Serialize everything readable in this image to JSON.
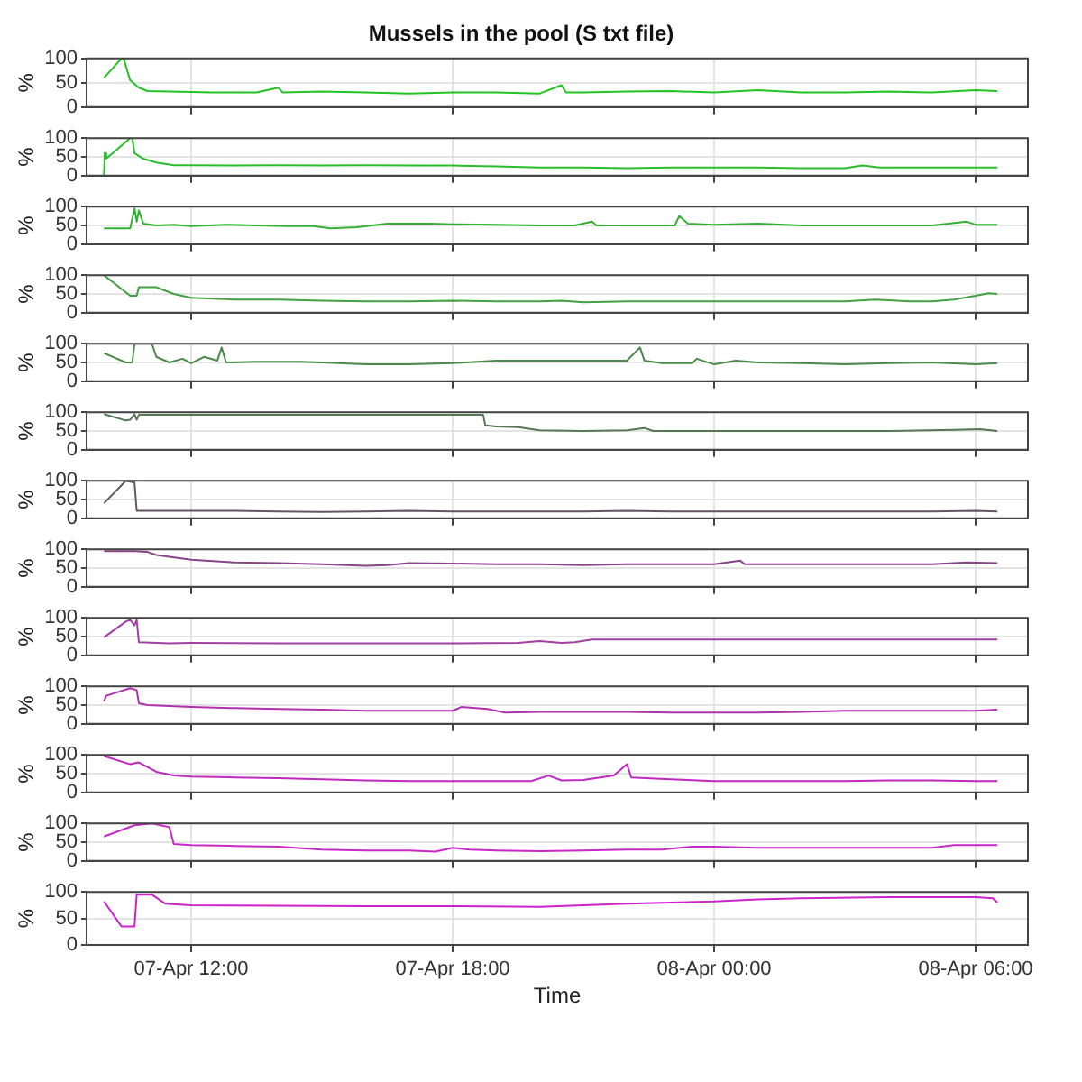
{
  "chart_data": [
    {
      "type": "line",
      "title": "Mussels in the pool (S txt file)",
      "ylabel": "%",
      "color": "#22c322",
      "xlim": [
        "--04-07T09:36",
        "--04-08T07:12"
      ],
      "xticks": [
        {
          "value": "--04-07T12:00",
          "label": null
        },
        {
          "value": "--04-07T18:00",
          "label": null
        },
        {
          "value": "--04-08T00:00",
          "label": null
        },
        {
          "value": "--04-08T06:00",
          "label": null
        }
      ],
      "ylim": [
        0,
        100
      ],
      "yticks": [
        0,
        50,
        100
      ],
      "grid": true,
      "tick_labels": "y",
      "x": [
        "--04-07T10:00",
        "--04-07T10:24",
        "--04-07T10:27",
        "--04-07T10:36",
        "--04-07T10:48",
        "--04-07T11:00",
        "--04-07T11:30",
        "--04-07T12:30",
        "--04-07T13:30",
        "--04-07T14:00",
        "--04-07T14:06",
        "--04-07T15:00",
        "--04-07T16:00",
        "--04-07T17:00",
        "--04-07T18:00",
        "--04-07T19:00",
        "--04-07T20:00",
        "--04-07T20:30",
        "--04-07T20:36",
        "--04-07T21:00",
        "--04-07T22:00",
        "--04-07T23:00",
        "--04-08T00:00",
        "--04-08T01:00",
        "--04-08T02:00",
        "--04-08T03:00",
        "--04-08T04:00",
        "--04-08T05:00",
        "--04-08T06:00",
        "--04-08T06:30"
      ],
      "values": [
        60,
        100,
        100,
        55,
        40,
        33,
        32,
        30,
        30,
        40,
        30,
        32,
        30,
        28,
        30,
        30,
        28,
        45,
        30,
        30,
        32,
        33,
        30,
        35,
        30,
        30,
        32,
        30,
        35,
        33
      ]
    },
    {
      "type": "line",
      "ylabel": "%",
      "color": "#2bbd2b",
      "xlim": [
        "--04-07T09:36",
        "--04-08T07:12"
      ],
      "xticks": [
        {
          "value": "--04-07T12:00",
          "label": null
        },
        {
          "value": "--04-07T18:00",
          "label": null
        },
        {
          "value": "--04-08T00:00",
          "label": null
        },
        {
          "value": "--04-08T06:00",
          "label": null
        }
      ],
      "ylim": [
        0,
        100
      ],
      "yticks": [
        0,
        50,
        100
      ],
      "grid": true,
      "tick_labels": "y",
      "x": [
        "--04-07T10:00",
        "--04-07T10:01",
        "--04-07T10:03",
        "--04-07T10:36",
        "--04-07T10:39",
        "--04-07T10:42",
        "--04-07T10:54",
        "--04-07T11:12",
        "--04-07T11:36",
        "--04-07T12:00",
        "--04-07T13:00",
        "--04-07T14:00",
        "--04-07T15:00",
        "--04-07T16:00",
        "--04-07T17:00",
        "--04-07T18:00",
        "--04-07T19:00",
        "--04-07T20:00",
        "--04-07T21:00",
        "--04-07T22:00",
        "--04-07T23:00",
        "--04-08T00:00",
        "--04-08T01:00",
        "--04-08T02:00",
        "--04-08T03:00",
        "--04-08T03:24",
        "--04-08T03:48",
        "--04-08T04:30",
        "--04-08T05:30",
        "--04-08T06:30"
      ],
      "values": [
        0,
        60,
        45,
        100,
        100,
        60,
        45,
        35,
        28,
        28,
        27,
        28,
        27,
        28,
        27,
        27,
        25,
        22,
        22,
        20,
        22,
        22,
        22,
        20,
        20,
        27,
        22,
        22,
        22,
        22
      ]
    },
    {
      "type": "line",
      "ylabel": "%",
      "color": "#33b033",
      "xlim": [
        "--04-07T09:36",
        "--04-08T07:12"
      ],
      "xticks": [
        {
          "value": "--04-07T12:00",
          "label": null
        },
        {
          "value": "--04-07T18:00",
          "label": null
        },
        {
          "value": "--04-08T00:00",
          "label": null
        },
        {
          "value": "--04-08T06:00",
          "label": null
        }
      ],
      "ylim": [
        0,
        100
      ],
      "yticks": [
        0,
        50,
        100
      ],
      "grid": true,
      "tick_labels": "y",
      "x": [
        "--04-07T10:00",
        "--04-07T10:36",
        "--04-07T10:42",
        "--04-07T10:45",
        "--04-07T10:48",
        "--04-07T10:54",
        "--04-07T11:12",
        "--04-07T11:36",
        "--04-07T12:00",
        "--04-07T12:48",
        "--04-07T13:30",
        "--04-07T14:12",
        "--04-07T14:48",
        "--04-07T15:12",
        "--04-07T15:48",
        "--04-07T16:30",
        "--04-07T17:30",
        "--04-07T18:00",
        "--04-07T19:00",
        "--04-07T20:00",
        "--04-07T20:48",
        "--04-07T21:12",
        "--04-07T21:18",
        "--04-07T22:00",
        "--04-07T23:06",
        "--04-07T23:12",
        "--04-07T23:24",
        "--04-08T00:00",
        "--04-08T01:00",
        "--04-08T02:00",
        "--04-08T03:00",
        "--04-08T04:00",
        "--04-08T05:00",
        "--04-08T05:48",
        "--04-08T06:00",
        "--04-08T06:30"
      ],
      "values": [
        42,
        42,
        95,
        60,
        90,
        55,
        50,
        52,
        48,
        52,
        50,
        48,
        48,
        42,
        45,
        55,
        55,
        53,
        52,
        50,
        50,
        60,
        50,
        50,
        50,
        75,
        55,
        52,
        55,
        50,
        50,
        50,
        50,
        60,
        52,
        52
      ]
    },
    {
      "type": "line",
      "ylabel": "%",
      "color": "#44a044",
      "xlim": [
        "--04-07T09:36",
        "--04-08T07:12"
      ],
      "xticks": [
        {
          "value": "--04-07T12:00",
          "label": null
        },
        {
          "value": "--04-07T18:00",
          "label": null
        },
        {
          "value": "--04-08T00:00",
          "label": null
        },
        {
          "value": "--04-08T06:00",
          "label": null
        }
      ],
      "ylim": [
        0,
        100
      ],
      "yticks": [
        0,
        50,
        100
      ],
      "grid": true,
      "tick_labels": "y",
      "x": [
        "--04-07T10:00",
        "--04-07T10:36",
        "--04-07T10:45",
        "--04-07T10:48",
        "--04-07T11:12",
        "--04-07T11:36",
        "--04-07T12:00",
        "--04-07T13:00",
        "--04-07T14:00",
        "--04-07T15:00",
        "--04-07T16:00",
        "--04-07T17:00",
        "--04-07T18:00",
        "--04-07T19:00",
        "--04-07T20:00",
        "--04-07T20:30",
        "--04-07T21:00",
        "--04-07T22:00",
        "--04-07T23:00",
        "--04-08T00:00",
        "--04-08T01:00",
        "--04-08T02:00",
        "--04-08T03:00",
        "--04-08T03:42",
        "--04-08T04:30",
        "--04-08T05:00",
        "--04-08T05:30",
        "--04-08T06:00",
        "--04-08T06:18",
        "--04-08T06:30"
      ],
      "values": [
        100,
        45,
        45,
        68,
        68,
        50,
        40,
        35,
        35,
        32,
        30,
        30,
        32,
        30,
        30,
        32,
        28,
        30,
        30,
        30,
        30,
        30,
        30,
        35,
        30,
        30,
        35,
        45,
        52,
        50
      ]
    },
    {
      "type": "line",
      "ylabel": "%",
      "color": "#4a8a4a",
      "xlim": [
        "--04-07T09:36",
        "--04-08T07:12"
      ],
      "xticks": [
        {
          "value": "--04-07T12:00",
          "label": null
        },
        {
          "value": "--04-07T18:00",
          "label": null
        },
        {
          "value": "--04-08T00:00",
          "label": null
        },
        {
          "value": "--04-08T06:00",
          "label": null
        }
      ],
      "ylim": [
        0,
        100
      ],
      "yticks": [
        0,
        50,
        100
      ],
      "grid": true,
      "tick_labels": "y",
      "x": [
        "--04-07T10:00",
        "--04-07T10:30",
        "--04-07T10:39",
        "--04-07T10:42",
        "--04-07T11:06",
        "--04-07T11:12",
        "--04-07T11:30",
        "--04-07T11:48",
        "--04-07T12:00",
        "--04-07T12:18",
        "--04-07T12:36",
        "--04-07T12:42",
        "--04-07T12:48",
        "--04-07T13:30",
        "--04-07T14:30",
        "--04-07T15:00",
        "--04-07T16:00",
        "--04-07T17:00",
        "--04-07T18:00",
        "--04-07T19:00",
        "--04-07T20:00",
        "--04-07T21:00",
        "--04-07T22:00",
        "--04-07T22:18",
        "--04-07T22:24",
        "--04-07T22:48",
        "--04-07T23:30",
        "--04-07T23:36",
        "--04-08T00:00",
        "--04-08T00:30",
        "--04-08T01:00",
        "--04-08T02:00",
        "--04-08T03:00",
        "--04-08T04:00",
        "--04-08T05:00",
        "--04-08T06:00",
        "--04-08T06:30"
      ],
      "values": [
        75,
        50,
        50,
        100,
        100,
        65,
        50,
        60,
        48,
        65,
        55,
        90,
        50,
        52,
        52,
        50,
        45,
        45,
        48,
        55,
        55,
        55,
        55,
        90,
        55,
        48,
        48,
        60,
        45,
        55,
        50,
        48,
        45,
        48,
        50,
        45,
        48
      ]
    },
    {
      "type": "line",
      "ylabel": "%",
      "color": "#557755",
      "xlim": [
        "--04-07T09:36",
        "--04-08T07:12"
      ],
      "xticks": [
        {
          "value": "--04-07T12:00",
          "label": null
        },
        {
          "value": "--04-07T18:00",
          "label": null
        },
        {
          "value": "--04-08T00:00",
          "label": null
        },
        {
          "value": "--04-08T06:00",
          "label": null
        }
      ],
      "ylim": [
        0,
        100
      ],
      "yticks": [
        0,
        50,
        100
      ],
      "grid": true,
      "tick_labels": "y",
      "x": [
        "--04-07T10:00",
        "--04-07T10:30",
        "--04-07T10:36",
        "--04-07T10:42",
        "--04-07T10:45",
        "--04-07T10:48",
        "--04-07T12:00",
        "--04-07T15:00",
        "--04-07T18:42",
        "--04-07T18:45",
        "--04-07T19:00",
        "--04-07T19:30",
        "--04-07T20:00",
        "--04-07T21:00",
        "--04-07T22:00",
        "--04-07T22:24",
        "--04-07T22:36",
        "--04-07T23:00",
        "--04-08T00:00",
        "--04-08T01:00",
        "--04-08T02:00",
        "--04-08T03:00",
        "--04-08T04:00",
        "--04-08T05:30",
        "--04-08T06:06",
        "--04-08T06:30"
      ],
      "values": [
        95,
        78,
        80,
        95,
        80,
        93,
        93,
        93,
        93,
        65,
        62,
        60,
        52,
        50,
        52,
        58,
        50,
        50,
        50,
        50,
        50,
        50,
        50,
        53,
        55,
        50
      ]
    },
    {
      "type": "line",
      "ylabel": "%",
      "color": "#665566",
      "xlim": [
        "--04-07T09:36",
        "--04-08T07:12"
      ],
      "xticks": [
        {
          "value": "--04-07T12:00",
          "label": null
        },
        {
          "value": "--04-07T18:00",
          "label": null
        },
        {
          "value": "--04-08T00:00",
          "label": null
        },
        {
          "value": "--04-08T06:00",
          "label": null
        }
      ],
      "ylim": [
        0,
        100
      ],
      "yticks": [
        0,
        50,
        100
      ],
      "grid": true,
      "tick_labels": "y",
      "x": [
        "--04-07T10:00",
        "--04-07T10:30",
        "--04-07T10:42",
        "--04-07T10:45",
        "--04-07T11:00",
        "--04-07T12:00",
        "--04-07T13:00",
        "--04-07T14:00",
        "--04-07T15:00",
        "--04-07T16:00",
        "--04-07T17:00",
        "--04-07T18:00",
        "--04-07T19:00",
        "--04-07T20:00",
        "--04-07T21:00",
        "--04-07T22:00",
        "--04-07T23:00",
        "--04-08T00:00",
        "--04-08T01:00",
        "--04-08T02:00",
        "--04-08T03:00",
        "--04-08T04:00",
        "--04-08T05:00",
        "--04-08T06:00",
        "--04-08T06:30"
      ],
      "values": [
        40,
        100,
        95,
        20,
        20,
        20,
        20,
        18,
        17,
        18,
        20,
        18,
        18,
        18,
        18,
        20,
        18,
        18,
        18,
        18,
        18,
        18,
        18,
        20,
        18
      ]
    },
    {
      "type": "line",
      "ylabel": "%",
      "color": "#884488",
      "xlim": [
        "--04-07T09:36",
        "--04-08T07:12"
      ],
      "xticks": [
        {
          "value": "--04-07T12:00",
          "label": null
        },
        {
          "value": "--04-07T18:00",
          "label": null
        },
        {
          "value": "--04-08T00:00",
          "label": null
        },
        {
          "value": "--04-08T06:00",
          "label": null
        }
      ],
      "ylim": [
        0,
        100
      ],
      "yticks": [
        0,
        50,
        100
      ],
      "grid": true,
      "tick_labels": "y",
      "x": [
        "--04-07T10:00",
        "--04-07T10:42",
        "--04-07T11:00",
        "--04-07T11:12",
        "--04-07T11:30",
        "--04-07T12:00",
        "--04-07T13:00",
        "--04-07T14:00",
        "--04-07T15:00",
        "--04-07T16:00",
        "--04-07T16:30",
        "--04-07T17:00",
        "--04-07T18:00",
        "--04-07T19:00",
        "--04-07T20:00",
        "--04-07T21:00",
        "--04-07T22:00",
        "--04-07T23:00",
        "--04-08T00:00",
        "--04-08T00:36",
        "--04-08T00:42",
        "--04-08T02:00",
        "--04-08T03:00",
        "--04-08T04:00",
        "--04-08T05:00",
        "--04-08T05:48",
        "--04-08T06:30"
      ],
      "values": [
        95,
        95,
        93,
        85,
        80,
        72,
        65,
        63,
        60,
        56,
        58,
        63,
        62,
        60,
        60,
        58,
        60,
        60,
        60,
        70,
        60,
        60,
        60,
        60,
        60,
        65,
        63
      ]
    },
    {
      "type": "line",
      "ylabel": "%",
      "color": "#a040a0",
      "xlim": [
        "--04-07T09:36",
        "--04-08T07:12"
      ],
      "xticks": [
        {
          "value": "--04-07T12:00",
          "label": null
        },
        {
          "value": "--04-07T18:00",
          "label": null
        },
        {
          "value": "--04-08T00:00",
          "label": null
        },
        {
          "value": "--04-08T06:00",
          "label": null
        }
      ],
      "ylim": [
        0,
        100
      ],
      "yticks": [
        0,
        50,
        100
      ],
      "grid": true,
      "tick_labels": "y",
      "x": [
        "--04-07T10:00",
        "--04-07T10:30",
        "--04-07T10:36",
        "--04-07T10:42",
        "--04-07T10:45",
        "--04-07T10:48",
        "--04-07T11:30",
        "--04-07T12:00",
        "--04-07T14:00",
        "--04-07T16:00",
        "--04-07T18:00",
        "--04-07T19:30",
        "--04-07T20:00",
        "--04-07T20:30",
        "--04-07T20:48",
        "--04-07T21:12",
        "--04-07T22:00",
        "--04-08T00:00",
        "--04-08T02:00",
        "--04-08T04:00",
        "--04-08T06:00",
        "--04-08T06:30"
      ],
      "values": [
        48,
        90,
        95,
        80,
        95,
        35,
        32,
        33,
        32,
        32,
        32,
        33,
        38,
        33,
        35,
        42,
        42,
        42,
        42,
        42,
        42,
        42
      ]
    },
    {
      "type": "line",
      "ylabel": "%",
      "color": "#b030b0",
      "xlim": [
        "--04-07T09:36",
        "--04-08T07:12"
      ],
      "xticks": [
        {
          "value": "--04-07T12:00",
          "label": null
        },
        {
          "value": "--04-07T18:00",
          "label": null
        },
        {
          "value": "--04-08T00:00",
          "label": null
        },
        {
          "value": "--04-08T06:00",
          "label": null
        }
      ],
      "ylim": [
        0,
        100
      ],
      "yticks": [
        0,
        50,
        100
      ],
      "grid": true,
      "tick_labels": "y",
      "x": [
        "--04-07T10:00",
        "--04-07T10:03",
        "--04-07T10:36",
        "--04-07T10:45",
        "--04-07T10:48",
        "--04-07T11:00",
        "--04-07T12:00",
        "--04-07T13:00",
        "--04-07T14:00",
        "--04-07T15:00",
        "--04-07T16:00",
        "--04-07T17:00",
        "--04-07T18:00",
        "--04-07T18:12",
        "--04-07T18:48",
        "--04-07T19:12",
        "--04-07T20:00",
        "--04-07T21:00",
        "--04-07T22:00",
        "--04-07T23:00",
        "--04-08T00:00",
        "--04-08T01:00",
        "--04-08T02:00",
        "--04-08T03:00",
        "--04-08T04:00",
        "--04-08T05:00",
        "--04-08T06:00",
        "--04-08T06:30"
      ],
      "values": [
        60,
        75,
        95,
        90,
        55,
        50,
        45,
        42,
        40,
        38,
        35,
        35,
        35,
        45,
        40,
        30,
        32,
        32,
        32,
        30,
        30,
        30,
        32,
        35,
        35,
        35,
        35,
        38
      ]
    },
    {
      "type": "line",
      "ylabel": "%",
      "color": "#c028c0",
      "xlim": [
        "--04-07T09:36",
        "--04-08T07:12"
      ],
      "xticks": [
        {
          "value": "--04-07T12:00",
          "label": null
        },
        {
          "value": "--04-07T18:00",
          "label": null
        },
        {
          "value": "--04-08T00:00",
          "label": null
        },
        {
          "value": "--04-08T06:00",
          "label": null
        }
      ],
      "ylim": [
        0,
        100
      ],
      "yticks": [
        0,
        50,
        100
      ],
      "grid": true,
      "tick_labels": "y",
      "x": [
        "--04-07T10:00",
        "--04-07T10:36",
        "--04-07T10:48",
        "--04-07T11:12",
        "--04-07T11:36",
        "--04-07T12:00",
        "--04-07T13:00",
        "--04-07T14:00",
        "--04-07T15:00",
        "--04-07T16:00",
        "--04-07T17:00",
        "--04-07T18:00",
        "--04-07T19:00",
        "--04-07T19:48",
        "--04-07T20:12",
        "--04-07T20:30",
        "--04-07T21:00",
        "--04-07T21:42",
        "--04-07T22:00",
        "--04-07T22:06",
        "--04-07T23:00",
        "--04-08T00:00",
        "--04-08T01:00",
        "--04-08T02:00",
        "--04-08T03:00",
        "--04-08T04:00",
        "--04-08T05:00",
        "--04-08T06:00",
        "--04-08T06:30"
      ],
      "values": [
        97,
        75,
        80,
        55,
        45,
        42,
        40,
        38,
        35,
        32,
        30,
        30,
        30,
        30,
        45,
        32,
        33,
        45,
        75,
        40,
        35,
        30,
        30,
        30,
        30,
        32,
        32,
        30,
        30
      ]
    },
    {
      "type": "line",
      "ylabel": "%",
      "color": "#c828c8",
      "xlim": [
        "--04-07T09:36",
        "--04-08T07:12"
      ],
      "xticks": [
        {
          "value": "--04-07T12:00",
          "label": null
        },
        {
          "value": "--04-07T18:00",
          "label": null
        },
        {
          "value": "--04-08T00:00",
          "label": null
        },
        {
          "value": "--04-08T06:00",
          "label": null
        }
      ],
      "ylim": [
        0,
        100
      ],
      "yticks": [
        0,
        50,
        100
      ],
      "grid": true,
      "tick_labels": "y",
      "x": [
        "--04-07T10:00",
        "--04-07T10:42",
        "--04-07T11:06",
        "--04-07T11:30",
        "--04-07T11:36",
        "--04-07T12:00",
        "--04-07T13:00",
        "--04-07T14:00",
        "--04-07T15:00",
        "--04-07T16:00",
        "--04-07T17:00",
        "--04-07T17:36",
        "--04-07T18:00",
        "--04-07T18:24",
        "--04-07T19:00",
        "--04-07T20:00",
        "--04-07T21:00",
        "--04-07T22:00",
        "--04-07T22:48",
        "--04-07T23:30",
        "--04-08T00:00",
        "--04-08T01:00",
        "--04-08T02:00",
        "--04-08T03:00",
        "--04-08T04:00",
        "--04-08T05:00",
        "--04-08T05:30",
        "--04-08T06:00",
        "--04-08T06:30"
      ],
      "values": [
        65,
        95,
        100,
        90,
        45,
        42,
        40,
        38,
        30,
        28,
        28,
        25,
        35,
        30,
        28,
        26,
        28,
        30,
        30,
        38,
        38,
        35,
        35,
        35,
        35,
        35,
        42,
        42,
        42
      ]
    },
    {
      "type": "line",
      "ylabel": "%",
      "xlabel": "Time",
      "color": "#cc22cc",
      "xlim": [
        "--04-07T09:36",
        "--04-08T07:12"
      ],
      "xticks": [
        {
          "value": "--04-07T12:00",
          "label": "07-Apr 12:00"
        },
        {
          "value": "--04-07T18:00",
          "label": "07-Apr 18:00"
        },
        {
          "value": "--04-08T00:00",
          "label": "08-Apr 00:00"
        },
        {
          "value": "--04-08T06:00",
          "label": "08-Apr 06:00"
        }
      ],
      "ylim": [
        0,
        100
      ],
      "yticks": [
        0,
        50,
        100
      ],
      "grid": true,
      "x": [
        "--04-07T10:00",
        "--04-07T10:24",
        "--04-07T10:42",
        "--04-07T10:45",
        "--04-07T11:06",
        "--04-07T11:24",
        "--04-07T12:00",
        "--04-07T14:00",
        "--04-07T16:00",
        "--04-07T18:00",
        "--04-07T20:00",
        "--04-07T21:00",
        "--04-07T22:00",
        "--04-08T00:00",
        "--04-08T01:00",
        "--04-08T02:00",
        "--04-08T04:00",
        "--04-08T06:00",
        "--04-08T06:24",
        "--04-08T06:30"
      ],
      "values": [
        82,
        35,
        35,
        95,
        95,
        78,
        75,
        74,
        73,
        73,
        72,
        75,
        78,
        82,
        86,
        88,
        90,
        90,
        88,
        80
      ]
    }
  ]
}
